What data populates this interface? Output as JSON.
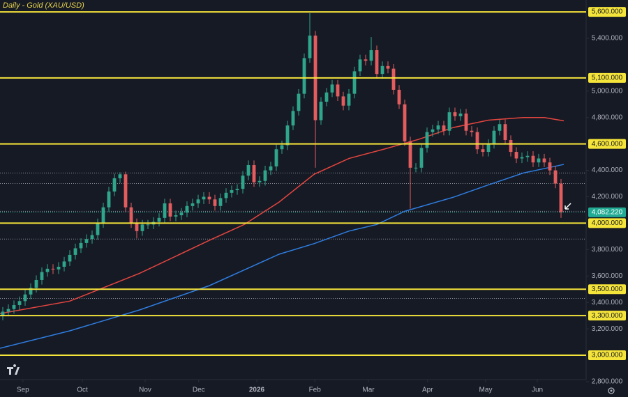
{
  "chart_data": {
    "type": "candlestick",
    "title": "Daily - Gold (XAU/USD)",
    "up_color": "#2fa58c",
    "down_color": "#e35d5f",
    "xlim": [
      -0.5,
      104.5
    ],
    "ylim": [
      2842,
      5690
    ],
    "xticks": [
      {
        "value": 3.6,
        "label": "Sep"
      },
      {
        "value": 14.25,
        "label": "Oct"
      },
      {
        "value": 25.5,
        "label": "Nov"
      },
      {
        "value": 35.1,
        "label": "Dec"
      },
      {
        "value": 45.5,
        "label": "2026"
      },
      {
        "value": 55.9,
        "label": "Feb"
      },
      {
        "value": 65.5,
        "label": "Mar"
      },
      {
        "value": 76.1,
        "label": "Apr"
      },
      {
        "value": 86.5,
        "label": "May"
      },
      {
        "value": 95.75,
        "label": "Jun"
      }
    ],
    "yticks": [
      {
        "value": 5400,
        "label": "5,400.000"
      },
      {
        "value": 5000,
        "label": "5,000.000"
      },
      {
        "value": 4800,
        "label": "4,800.000"
      },
      {
        "value": 4400,
        "label": "4,400.000"
      },
      {
        "value": 4200,
        "label": "4,200.000"
      },
      {
        "value": 3800,
        "label": "3,800.000"
      },
      {
        "value": 3600,
        "label": "3,600.000"
      },
      {
        "value": 3400,
        "label": "3,400.000"
      },
      {
        "value": 3200,
        "label": "3,200.000"
      },
      {
        "value": 2800,
        "label": "2,800.000"
      }
    ],
    "levels": [
      {
        "value": 5600,
        "label": "5,600.000"
      },
      {
        "value": 5100,
        "label": "5,100.000"
      },
      {
        "value": 4600,
        "label": "4,600.000"
      },
      {
        "value": 4000,
        "label": "4,000.000"
      },
      {
        "value": 3500,
        "label": "3,500.000"
      },
      {
        "value": 3300,
        "label": "3,300.000"
      },
      {
        "value": 3000,
        "label": "3,000.000"
      }
    ],
    "level_color": "#f5e43a",
    "dotted_levels": [
      4380,
      4300,
      4090,
      3880,
      3430
    ],
    "last_price": {
      "value": 4082.22,
      "label": "4,082.220"
    },
    "last_price_color": "#22ab94",
    "open": [
      3300,
      3330,
      3350,
      3380,
      3410,
      3460,
      3510,
      3570,
      3630,
      3655,
      3650,
      3670,
      3710,
      3760,
      3810,
      3850,
      3880,
      3910,
      4000,
      4120,
      4240,
      4340,
      4370,
      4120,
      4000,
      3940,
      3990,
      3990,
      4010,
      4040,
      4150,
      4050,
      4060,
      4080,
      4130,
      4150,
      4180,
      4200,
      4180,
      4130,
      4190,
      4230,
      4250,
      4260,
      4360,
      4440,
      4310,
      4320,
      4400,
      4430,
      4560,
      4590,
      4740,
      4850,
      4980,
      5250,
      5420,
      4780,
      4920,
      4990,
      5050,
      4960,
      4890,
      4980,
      5150,
      5240,
      5230,
      5310,
      5130,
      5190,
      5170,
      5010,
      4900,
      4620,
      4420,
      4420,
      4570,
      4690,
      4710,
      4740,
      4700,
      4840,
      4810,
      4830,
      4700,
      4690,
      4560,
      4540,
      4600,
      4700,
      4750,
      4630,
      4540,
      4490,
      4500,
      4510,
      4460,
      4490,
      4460,
      4400,
      4300
    ],
    "high": [
      3365,
      3385,
      3415,
      3445,
      3495,
      3545,
      3605,
      3665,
      3690,
      3690,
      3705,
      3745,
      3795,
      3845,
      3885,
      3915,
      3945,
      4035,
      4155,
      4275,
      4375,
      4385,
      4390,
      4155,
      4035,
      4025,
      4025,
      4045,
      4075,
      4185,
      4185,
      4095,
      4115,
      4165,
      4185,
      4215,
      4235,
      4235,
      4215,
      4225,
      4265,
      4285,
      4295,
      4395,
      4475,
      4475,
      4355,
      4435,
      4465,
      4595,
      4625,
      4775,
      4885,
      5015,
      5285,
      5590,
      5455,
      4955,
      5025,
      5085,
      5085,
      4995,
      5015,
      5185,
      5275,
      5275,
      5410,
      5345,
      5225,
      5225,
      5205,
      5045,
      4935,
      4655,
      4455,
      4605,
      4725,
      4745,
      4775,
      4775,
      4875,
      4875,
      4865,
      4865,
      4735,
      4725,
      4595,
      4635,
      4735,
      4785,
      4785,
      4665,
      4575,
      4535,
      4545,
      4545,
      4525,
      4525,
      4495,
      4435,
      4335
    ],
    "low": [
      3265,
      3295,
      3315,
      3345,
      3375,
      3425,
      3475,
      3535,
      3595,
      3615,
      3615,
      3635,
      3675,
      3725,
      3775,
      3815,
      3845,
      3875,
      3965,
      4085,
      4205,
      4305,
      4085,
      3965,
      3885,
      3905,
      3955,
      3955,
      3975,
      4005,
      4015,
      4015,
      4025,
      4045,
      4095,
      4115,
      4145,
      4145,
      4095,
      4095,
      4155,
      4195,
      4215,
      4225,
      4325,
      4275,
      4275,
      4285,
      4365,
      4395,
      4525,
      4555,
      4705,
      4815,
      4945,
      5215,
      4420,
      4745,
      4885,
      4955,
      4925,
      4855,
      4855,
      4945,
      5115,
      5195,
      5195,
      5095,
      5095,
      5135,
      4975,
      4865,
      4585,
      4110,
      4385,
      4385,
      4535,
      4655,
      4675,
      4665,
      4665,
      4775,
      4775,
      4665,
      4655,
      4525,
      4505,
      4505,
      4565,
      4665,
      4595,
      4505,
      4455,
      4455,
      4465,
      4425,
      4425,
      4425,
      4365,
      4265,
      4040
    ],
    "close": [
      3330,
      3350,
      3380,
      3410,
      3460,
      3510,
      3570,
      3630,
      3655,
      3650,
      3670,
      3710,
      3760,
      3810,
      3850,
      3880,
      3910,
      4000,
      4120,
      4240,
      4340,
      4370,
      4120,
      4000,
      3940,
      3990,
      3990,
      4010,
      4040,
      4150,
      4050,
      4060,
      4080,
      4130,
      4150,
      4180,
      4200,
      4180,
      4130,
      4190,
      4230,
      4250,
      4260,
      4360,
      4440,
      4310,
      4320,
      4400,
      4430,
      4560,
      4590,
      4740,
      4850,
      4980,
      5250,
      5420,
      4780,
      4920,
      4990,
      5050,
      4960,
      4890,
      4980,
      5150,
      5240,
      5230,
      5310,
      5130,
      5190,
      5170,
      5010,
      4900,
      4620,
      4420,
      4420,
      4570,
      4690,
      4710,
      4740,
      4700,
      4840,
      4810,
      4830,
      4700,
      4690,
      4560,
      4540,
      4600,
      4700,
      4750,
      4630,
      4540,
      4490,
      4500,
      4510,
      4460,
      4490,
      4460,
      4400,
      4300,
      4082.22
    ],
    "lines": [
      {
        "color": "#e5453f",
        "x": [
          -0.5,
          12,
          24.5,
          37,
          43.25,
          49.5,
          55.75,
          62,
          68.25,
          74.5,
          80.75,
          87,
          93.25,
          97,
          100.5
        ],
        "values": [
          3315,
          3410,
          3620,
          3870,
          3990,
          4160,
          4370,
          4490,
          4560,
          4635,
          4725,
          4780,
          4800,
          4800,
          4775
        ]
      },
      {
        "color": "#2f7de0",
        "x": [
          -0.5,
          12,
          24.5,
          37,
          49.5,
          55.75,
          62,
          67,
          72,
          80.75,
          87,
          93.25,
          100.5
        ],
        "values": [
          3053,
          3185,
          3343,
          3527,
          3765,
          3845,
          3940,
          3990,
          4090,
          4197,
          4290,
          4380,
          4445
        ]
      }
    ]
  }
}
